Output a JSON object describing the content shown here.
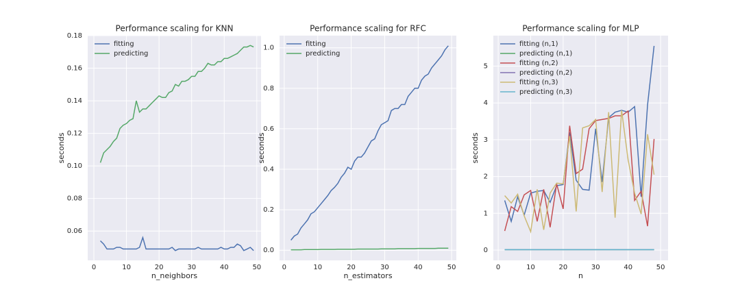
{
  "chart_data": [
    {
      "type": "line",
      "title": "Performance scaling for KNN",
      "xlabel": "n_neighbors",
      "ylabel": "seconds",
      "x": [
        2,
        3,
        4,
        5,
        6,
        7,
        8,
        9,
        10,
        11,
        12,
        13,
        14,
        15,
        16,
        17,
        18,
        19,
        20,
        21,
        22,
        23,
        24,
        25,
        26,
        27,
        28,
        29,
        30,
        31,
        32,
        33,
        34,
        35,
        36,
        37,
        38,
        39,
        40,
        41,
        42,
        43,
        44,
        45,
        46,
        47,
        48,
        49
      ],
      "series": [
        {
          "name": "fitting",
          "color": "#4c72b0",
          "values": [
            0.054,
            0.052,
            0.049,
            0.049,
            0.049,
            0.05,
            0.05,
            0.049,
            0.049,
            0.049,
            0.049,
            0.049,
            0.05,
            0.056,
            0.049,
            0.049,
            0.049,
            0.049,
            0.049,
            0.049,
            0.049,
            0.049,
            0.05,
            0.048,
            0.049,
            0.049,
            0.049,
            0.049,
            0.049,
            0.049,
            0.05,
            0.049,
            0.049,
            0.049,
            0.049,
            0.049,
            0.049,
            0.05,
            0.049,
            0.049,
            0.05,
            0.05,
            0.052,
            0.051,
            0.048,
            0.049,
            0.05,
            0.048
          ]
        },
        {
          "name": "predicting",
          "color": "#55a868",
          "values": [
            0.102,
            0.108,
            0.11,
            0.112,
            0.115,
            0.117,
            0.123,
            0.125,
            0.126,
            0.128,
            0.129,
            0.14,
            0.133,
            0.135,
            0.135,
            0.137,
            0.139,
            0.141,
            0.143,
            0.142,
            0.142,
            0.145,
            0.146,
            0.15,
            0.149,
            0.152,
            0.152,
            0.153,
            0.155,
            0.155,
            0.158,
            0.158,
            0.16,
            0.163,
            0.162,
            0.162,
            0.164,
            0.164,
            0.166,
            0.166,
            0.167,
            0.168,
            0.169,
            0.171,
            0.173,
            0.173,
            0.174,
            0.173
          ]
        }
      ],
      "xlim": [
        -1.9,
        51.3
      ],
      "xticks": [
        0,
        10,
        20,
        30,
        40,
        50
      ],
      "ylim": [
        0.042,
        0.18
      ],
      "yticks": [
        0.06,
        0.08,
        {
          "value": 0.1,
          "label": "0.10"
        },
        0.12,
        0.14,
        0.16,
        0.18
      ],
      "grid": true,
      "legend": "upper-left"
    },
    {
      "type": "line",
      "title": "Performance scaling for RFC",
      "xlabel": "n_estimators",
      "ylabel": "seconds",
      "x": [
        2,
        3,
        4,
        5,
        6,
        7,
        8,
        9,
        10,
        11,
        12,
        13,
        14,
        15,
        16,
        17,
        18,
        19,
        20,
        21,
        22,
        23,
        24,
        25,
        26,
        27,
        28,
        29,
        30,
        31,
        32,
        33,
        34,
        35,
        36,
        37,
        38,
        39,
        40,
        41,
        42,
        43,
        44,
        45,
        46,
        47,
        48,
        49
      ],
      "series": [
        {
          "name": "fitting",
          "color": "#4c72b0",
          "values": [
            0.05,
            0.07,
            0.08,
            0.11,
            0.13,
            0.15,
            0.18,
            0.19,
            0.21,
            0.23,
            0.25,
            0.27,
            0.295,
            0.31,
            0.33,
            0.36,
            0.38,
            0.41,
            0.4,
            0.44,
            0.46,
            0.46,
            0.48,
            0.51,
            0.54,
            0.55,
            0.59,
            0.62,
            0.63,
            0.64,
            0.69,
            0.7,
            0.7,
            0.72,
            0.72,
            0.76,
            0.78,
            0.8,
            0.8,
            0.84,
            0.86,
            0.87,
            0.9,
            0.92,
            0.94,
            0.96,
            0.99,
            1.01
          ]
        },
        {
          "name": "predicting",
          "color": "#55a868",
          "values": [
            0.002,
            0.002,
            0.002,
            0.002,
            0.003,
            0.003,
            0.003,
            0.003,
            0.003,
            0.004,
            0.004,
            0.004,
            0.004,
            0.004,
            0.005,
            0.005,
            0.005,
            0.005,
            0.005,
            0.005,
            0.006,
            0.006,
            0.006,
            0.006,
            0.006,
            0.006,
            0.006,
            0.007,
            0.007,
            0.007,
            0.007,
            0.007,
            0.008,
            0.008,
            0.008,
            0.008,
            0.008,
            0.008,
            0.009,
            0.009,
            0.009,
            0.009,
            0.009,
            0.009,
            0.01,
            0.01,
            0.01,
            0.01
          ]
        }
      ],
      "xlim": [
        -1.4,
        51.4
      ],
      "xticks": [
        0,
        10,
        20,
        30,
        40,
        50
      ],
      "ylim": [
        -0.05,
        1.06
      ],
      "yticks": [
        {
          "value": 0,
          "label": "0.0"
        },
        0.2,
        0.4,
        0.6,
        0.8,
        {
          "value": 1,
          "label": "1.0"
        }
      ],
      "grid": true,
      "legend": "upper-left"
    },
    {
      "type": "line",
      "title": "Performance scaling for MLP",
      "xlabel": "n",
      "ylabel": "seconds",
      "x": [
        2,
        4,
        6,
        8,
        10,
        12,
        14,
        16,
        18,
        20,
        22,
        24,
        26,
        28,
        30,
        32,
        34,
        36,
        38,
        40,
        42,
        44,
        46,
        48
      ],
      "series": [
        {
          "name": "fitting (n,1)",
          "color": "#4c72b0",
          "values": [
            1.35,
            0.78,
            1.45,
            0.95,
            1.55,
            1.6,
            1.62,
            1.3,
            1.75,
            1.78,
            3.2,
            1.9,
            1.65,
            1.63,
            3.3,
            1.85,
            3.6,
            3.75,
            3.8,
            3.75,
            3.9,
            1.45,
            3.95,
            5.55
          ]
        },
        {
          "name": "predicting (n,1)",
          "color": "#55a868",
          "values": [
            0.01,
            0.01,
            0.01,
            0.01,
            0.01,
            0.01,
            0.01,
            0.01,
            0.01,
            0.01,
            0.01,
            0.01,
            0.01,
            0.01,
            0.01,
            0.01,
            0.01,
            0.01,
            0.01,
            0.01,
            0.01,
            0.01,
            0.01,
            0.01
          ]
        },
        {
          "name": "fitting (n,2)",
          "color": "#c44e52",
          "values": [
            0.52,
            1.18,
            1.05,
            1.5,
            1.62,
            0.78,
            1.65,
            0.62,
            1.8,
            1.12,
            3.38,
            2.08,
            2.2,
            3.3,
            3.52,
            3.55,
            3.58,
            3.65,
            3.65,
            3.78,
            1.35,
            1.6,
            0.65,
            3.02
          ]
        },
        {
          "name": "predicting (n,2)",
          "color": "#8172b2",
          "values": [
            0.01,
            0.01,
            0.01,
            0.01,
            0.01,
            0.01,
            0.01,
            0.01,
            0.01,
            0.01,
            0.01,
            0.01,
            0.01,
            0.01,
            0.01,
            0.01,
            0.01,
            0.01,
            0.01,
            0.01,
            0.01,
            0.01,
            0.01,
            0.01
          ]
        },
        {
          "name": "fitting (n,3)",
          "color": "#ccb974",
          "values": [
            1.48,
            1.28,
            1.52,
            0.93,
            0.5,
            1.65,
            0.55,
            1.55,
            1.82,
            1.8,
            3.1,
            1.05,
            3.32,
            3.38,
            3.55,
            1.58,
            3.75,
            0.88,
            3.8,
            2.45,
            1.55,
            0.98,
            3.15,
            2.05
          ]
        },
        {
          "name": "predicting (n,3)",
          "color": "#64b5cd",
          "values": [
            0.01,
            0.01,
            0.01,
            0.01,
            0.01,
            0.01,
            0.01,
            0.01,
            0.01,
            0.01,
            0.01,
            0.01,
            0.01,
            0.01,
            0.01,
            0.01,
            0.01,
            0.01,
            0.01,
            0.01,
            0.01,
            0.01,
            0.01,
            0.01
          ]
        }
      ],
      "xlim": [
        -1.5,
        52.3
      ],
      "xticks": [
        0,
        10,
        20,
        30,
        40,
        50
      ],
      "ylim": [
        -0.28,
        5.83
      ],
      "yticks": [
        0,
        1,
        2,
        3,
        4,
        5
      ],
      "grid": true,
      "legend": "upper-left"
    }
  ]
}
